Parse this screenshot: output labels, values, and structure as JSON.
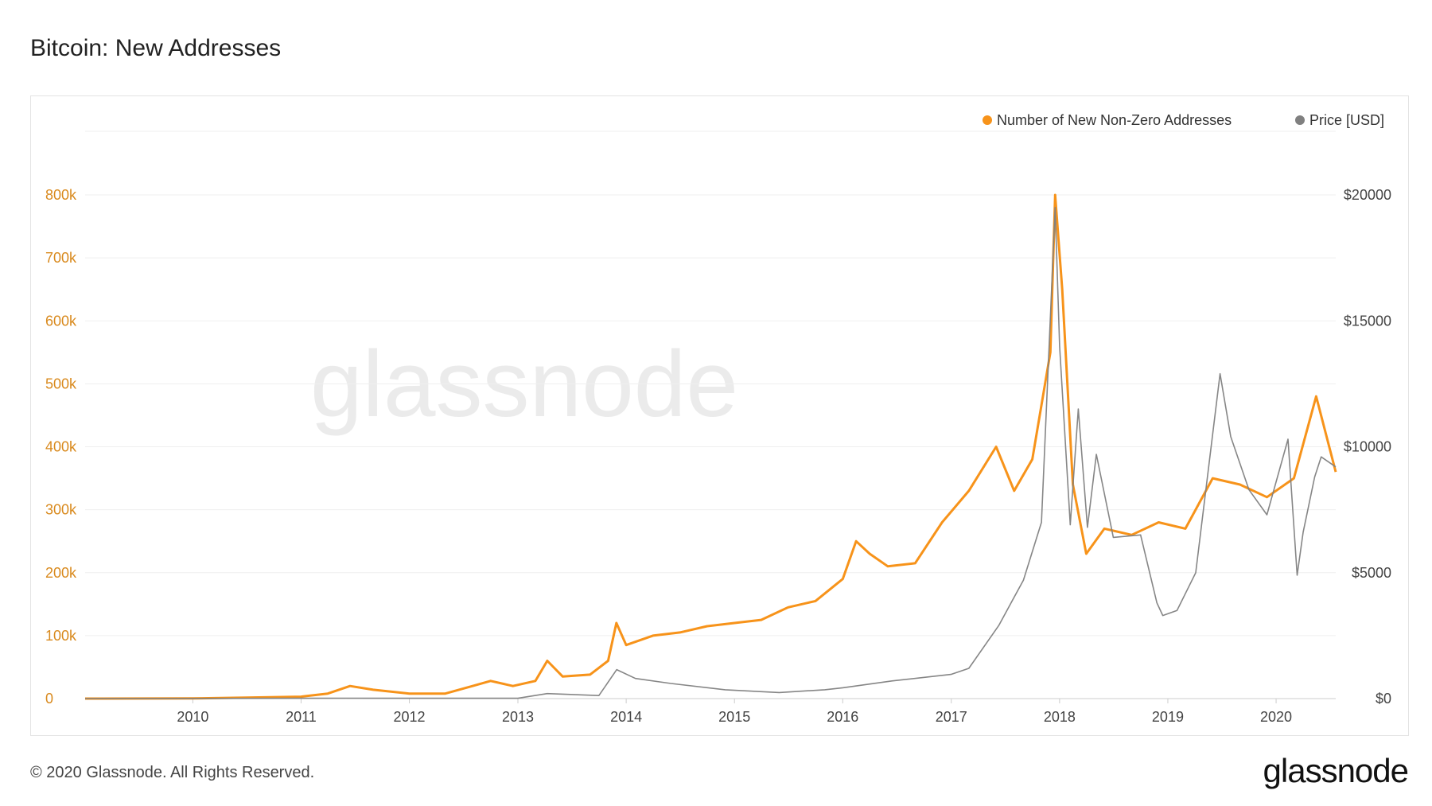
{
  "title": "Bitcoin: New Addresses",
  "footer": "© 2020 Glassnode. All Rights Reserved.",
  "brand": "glassnode",
  "watermark": "glassnode",
  "colors": {
    "primary": "#f7931a",
    "secondary": "#808080",
    "left_axis": "#d98a1e",
    "grid": "#efefef"
  },
  "legend": [
    {
      "label": "Number of New Non-Zero Addresses",
      "color": "#f7931a"
    },
    {
      "label": "Price [USD]",
      "color": "#808080"
    }
  ],
  "chart_data": {
    "type": "line",
    "title": "Bitcoin: New Addresses",
    "x_type": "date",
    "x_ticks": [
      "2010",
      "2011",
      "2012",
      "2013",
      "2014",
      "2015",
      "2016",
      "2017",
      "2018",
      "2019",
      "2020"
    ],
    "y_left_ticks": [
      "0",
      "100k",
      "200k",
      "300k",
      "400k",
      "500k",
      "600k",
      "700k",
      "800k"
    ],
    "y_right_ticks": [
      "$0",
      "$5000",
      "$10000",
      "$15000",
      "$20000"
    ],
    "y_left_range": [
      0,
      800000
    ],
    "y_right_range": [
      0,
      20000
    ],
    "x_range": [
      "2009-01-03",
      "2020-07-20"
    ],
    "grid": true,
    "legend_position": "top-right",
    "series": [
      {
        "name": "Number of New Non-Zero Addresses",
        "axis": "left",
        "color": "#f7931a",
        "points": [
          [
            "2009-01-03",
            0
          ],
          [
            "2010-01-01",
            200
          ],
          [
            "2010-07-01",
            1500
          ],
          [
            "2011-01-01",
            3000
          ],
          [
            "2011-04-01",
            8000
          ],
          [
            "2011-06-15",
            20000
          ],
          [
            "2011-09-01",
            14000
          ],
          [
            "2012-01-01",
            8000
          ],
          [
            "2012-05-01",
            8000
          ],
          [
            "2012-08-01",
            20000
          ],
          [
            "2012-10-01",
            28000
          ],
          [
            "2012-12-15",
            20000
          ],
          [
            "2013-03-01",
            28000
          ],
          [
            "2013-04-10",
            60000
          ],
          [
            "2013-06-01",
            35000
          ],
          [
            "2013-09-01",
            38000
          ],
          [
            "2013-11-01",
            60000
          ],
          [
            "2013-11-29",
            120000
          ],
          [
            "2014-01-01",
            85000
          ],
          [
            "2014-04-01",
            100000
          ],
          [
            "2014-07-01",
            105000
          ],
          [
            "2014-10-01",
            115000
          ],
          [
            "2015-01-01",
            120000
          ],
          [
            "2015-04-01",
            125000
          ],
          [
            "2015-07-01",
            145000
          ],
          [
            "2015-10-01",
            155000
          ],
          [
            "2016-01-01",
            190000
          ],
          [
            "2016-02-15",
            250000
          ],
          [
            "2016-04-01",
            230000
          ],
          [
            "2016-06-01",
            210000
          ],
          [
            "2016-09-01",
            215000
          ],
          [
            "2016-12-01",
            280000
          ],
          [
            "2017-03-01",
            330000
          ],
          [
            "2017-06-01",
            400000
          ],
          [
            "2017-08-01",
            330000
          ],
          [
            "2017-10-01",
            380000
          ],
          [
            "2017-12-01",
            550000
          ],
          [
            "2017-12-17",
            800000
          ],
          [
            "2018-01-10",
            650000
          ],
          [
            "2018-02-15",
            340000
          ],
          [
            "2018-04-01",
            230000
          ],
          [
            "2018-06-01",
            270000
          ],
          [
            "2018-09-01",
            260000
          ],
          [
            "2018-12-01",
            280000
          ],
          [
            "2019-03-01",
            270000
          ],
          [
            "2019-06-01",
            350000
          ],
          [
            "2019-09-01",
            340000
          ],
          [
            "2019-12-01",
            320000
          ],
          [
            "2020-03-01",
            350000
          ],
          [
            "2020-05-15",
            480000
          ],
          [
            "2020-07-20",
            360000
          ]
        ]
      },
      {
        "name": "Price [USD]",
        "axis": "right",
        "color": "#808080",
        "points": [
          [
            "2009-01-03",
            0
          ],
          [
            "2011-06-01",
            15
          ],
          [
            "2013-01-01",
            13
          ],
          [
            "2013-04-10",
            200
          ],
          [
            "2013-10-01",
            120
          ],
          [
            "2013-11-30",
            1150
          ],
          [
            "2014-02-01",
            800
          ],
          [
            "2014-06-01",
            600
          ],
          [
            "2014-12-01",
            350
          ],
          [
            "2015-06-01",
            240
          ],
          [
            "2015-11-01",
            350
          ],
          [
            "2016-01-01",
            430
          ],
          [
            "2016-06-15",
            700
          ],
          [
            "2016-12-31",
            960
          ],
          [
            "2017-03-01",
            1200
          ],
          [
            "2017-06-10",
            2900
          ],
          [
            "2017-09-01",
            4700
          ],
          [
            "2017-11-01",
            7000
          ],
          [
            "2017-12-17",
            19500
          ],
          [
            "2018-01-01",
            14000
          ],
          [
            "2018-02-06",
            6900
          ],
          [
            "2018-03-05",
            11500
          ],
          [
            "2018-04-05",
            6800
          ],
          [
            "2018-05-05",
            9700
          ],
          [
            "2018-07-01",
            6400
          ],
          [
            "2018-10-01",
            6500
          ],
          [
            "2018-11-25",
            3800
          ],
          [
            "2018-12-15",
            3300
          ],
          [
            "2019-02-01",
            3500
          ],
          [
            "2019-04-05",
            5000
          ],
          [
            "2019-06-26",
            12900
          ],
          [
            "2019-08-01",
            10400
          ],
          [
            "2019-10-01",
            8300
          ],
          [
            "2019-12-01",
            7300
          ],
          [
            "2020-02-10",
            10300
          ],
          [
            "2020-03-12",
            4900
          ],
          [
            "2020-04-01",
            6600
          ],
          [
            "2020-05-10",
            8800
          ],
          [
            "2020-06-01",
            9600
          ],
          [
            "2020-07-20",
            9200
          ]
        ]
      }
    ]
  }
}
